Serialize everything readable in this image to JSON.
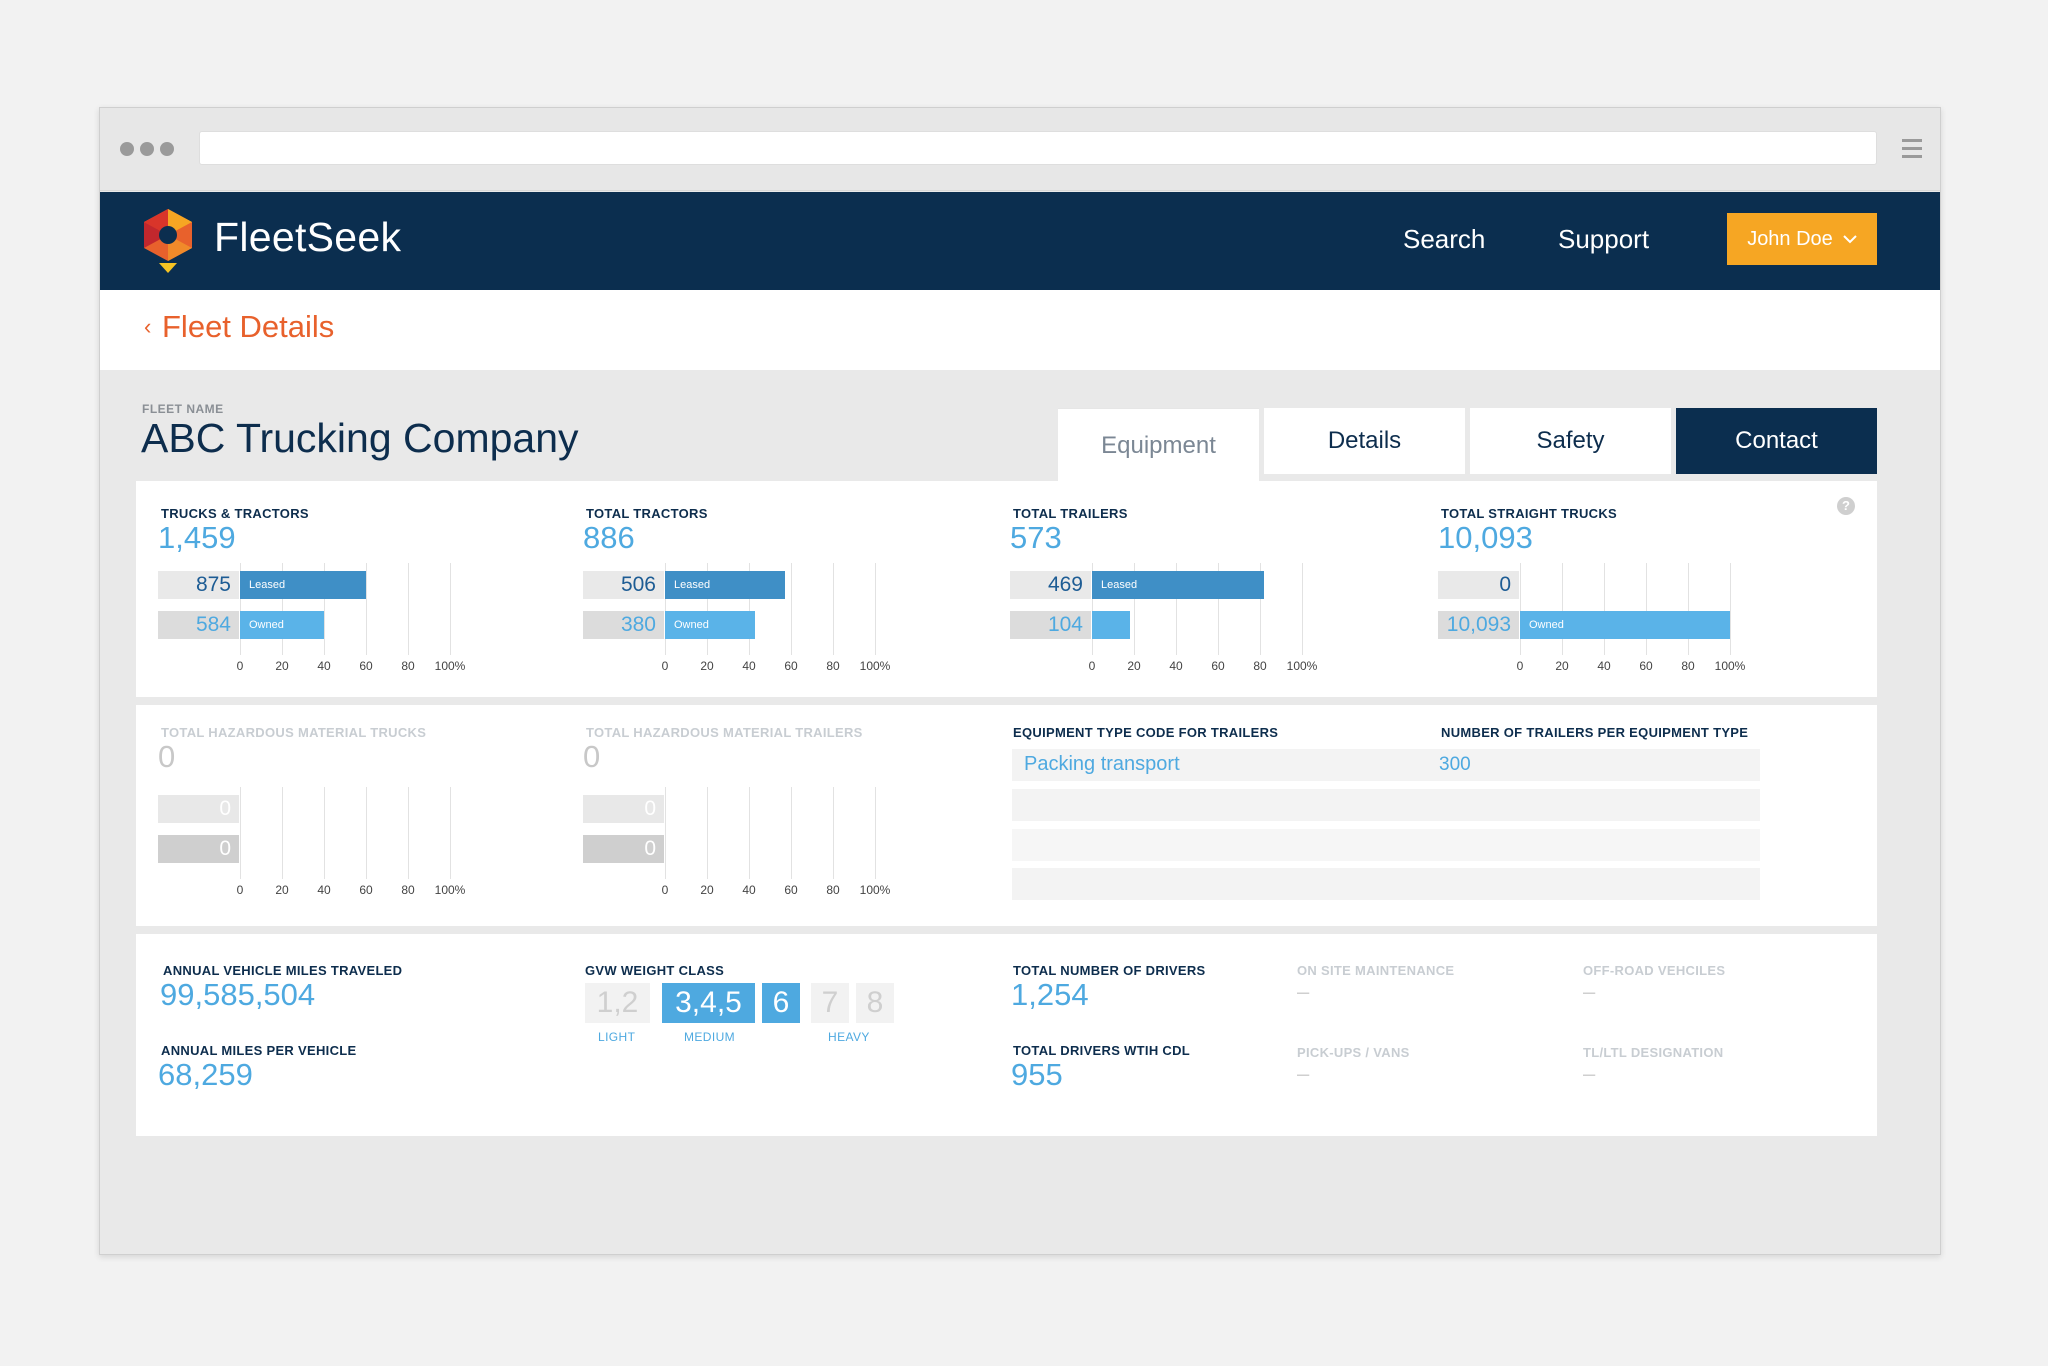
{
  "app": {
    "brand": "FleetSeek"
  },
  "nav": {
    "search": "Search",
    "support": "Support",
    "user": "John Doe"
  },
  "breadcrumb": {
    "chevron": "‹",
    "label": "Fleet Details"
  },
  "fleet": {
    "label": "FLEET NAME",
    "name": "ABC Trucking Company"
  },
  "tabs": [
    {
      "label": "Equipment",
      "active": true
    },
    {
      "label": "Details"
    },
    {
      "label": "Safety"
    },
    {
      "label": "Contact"
    }
  ],
  "ticks": [
    "0",
    "20",
    "40",
    "60",
    "80",
    "100%"
  ],
  "help": "?",
  "stats": [
    {
      "label": "TRUCKS & TRACTORS",
      "value": "1,459",
      "rows": [
        {
          "count": "875",
          "pct": 60,
          "tag": "Leased"
        },
        {
          "count": "584",
          "pct": 40,
          "tag": "Owned"
        }
      ]
    },
    {
      "label": "TOTAL TRACTORS",
      "value": "886",
      "rows": [
        {
          "count": "506",
          "pct": 57,
          "tag": "Leased"
        },
        {
          "count": "380",
          "pct": 43,
          "tag": "Owned"
        }
      ]
    },
    {
      "label": "TOTAL TRAILERS",
      "value": "573",
      "rows": [
        {
          "count": "469",
          "pct": 82,
          "tag": "Leased"
        },
        {
          "count": "104",
          "pct": 18,
          "tag": ""
        }
      ]
    },
    {
      "label": "TOTAL STRAIGHT TRUCKS",
      "value": "10,093",
      "rows": [
        {
          "count": "0",
          "pct": 0,
          "tag": ""
        },
        {
          "count": "10,093",
          "pct": 100,
          "tag": "Owned"
        }
      ]
    }
  ],
  "hazmat": [
    {
      "label": "TOTAL HAZARDOUS MATERIAL TRUCKS",
      "value": "0",
      "rows": [
        {
          "count": "0"
        },
        {
          "count": "0"
        }
      ]
    },
    {
      "label": "TOTAL HAZARDOUS MATERIAL TRAILERS",
      "value": "0",
      "rows": [
        {
          "count": "0"
        },
        {
          "count": "0"
        }
      ]
    }
  ],
  "equipment": {
    "code_label": "EQUIPMENT TYPE CODE FOR TRAILERS",
    "count_label": "NUMBER OF TRAILERS PER EQUIPMENT TYPE",
    "rows": [
      {
        "code": "Packing transport",
        "count": "300"
      }
    ]
  },
  "miles": {
    "annual_label": "ANNUAL VEHICLE MILES TRAVELED",
    "annual_value": "99,585,504",
    "per_label": "ANNUAL MILES PER VEHICLE",
    "per_value": "68,259"
  },
  "gvw": {
    "label": "GVW WEIGHT CLASS",
    "boxes": [
      "1,2",
      "3,4,5",
      "6",
      "7",
      "8"
    ],
    "captions": [
      "LIGHT",
      "MEDIUM",
      "HEAVY"
    ]
  },
  "drivers": {
    "total_label": "TOTAL NUMBER OF DRIVERS",
    "total_value": "1,254",
    "cdl_label": "TOTAL DRIVERS WTIH CDL",
    "cdl_value": "955"
  },
  "misc": {
    "onsite_label": "ON SITE MAINTENANCE",
    "onsite_value": "–",
    "offroad_label": "OFF-ROAD VEHCILES",
    "offroad_value": "–",
    "pickups_label": "PICK-UPS / VANS",
    "pickups_value": "–",
    "tl_label": "TL/LTL DESIGNATION",
    "tl_value": "–"
  },
  "colors": {
    "navy": "#0b2e4f",
    "orange": "#f6a623",
    "accent_blue": "#4ea9e0",
    "leased_blue": "#3f8fc6",
    "breadcrumb": "#e8612c"
  }
}
